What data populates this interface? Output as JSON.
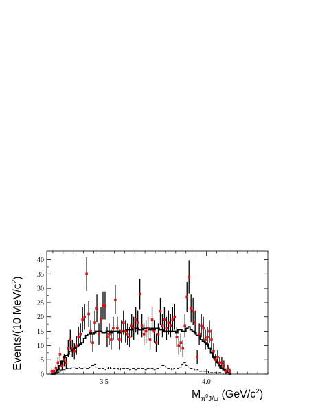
{
  "chart_data": {
    "type": "scatter",
    "xlim": [
      3.22,
      4.3
    ],
    "ylim": [
      0,
      43
    ],
    "xticks": [
      3.5,
      4.0
    ],
    "xtick_labels": [
      "3.5",
      "4.0"
    ],
    "yticks": [
      0,
      5,
      10,
      15,
      20,
      25,
      30,
      35,
      40
    ],
    "ytick_labels": [
      "0",
      "5",
      "10",
      "15",
      "20",
      "25",
      "30",
      "35",
      "40"
    ],
    "ylabel": {
      "main": "Events/(10 MeV/c",
      "sup": "2",
      "close": ")"
    },
    "xlabel": {
      "main": "M",
      "sub": "π",
      "subsup": "0",
      "subtail": "J/ψ",
      "unit": " (GeV/c",
      "unitsup": "2",
      "close": ")"
    },
    "grid": false,
    "legend": "none",
    "colors": {
      "points": "#dd1111",
      "errorbars": "#000000",
      "fit": "#000000",
      "background": "#000000"
    },
    "x": [
      3.245,
      3.255,
      3.265,
      3.275,
      3.285,
      3.295,
      3.305,
      3.315,
      3.325,
      3.335,
      3.345,
      3.355,
      3.365,
      3.375,
      3.385,
      3.395,
      3.405,
      3.415,
      3.425,
      3.435,
      3.445,
      3.455,
      3.465,
      3.475,
      3.485,
      3.495,
      3.505,
      3.515,
      3.525,
      3.535,
      3.545,
      3.555,
      3.565,
      3.575,
      3.585,
      3.595,
      3.605,
      3.615,
      3.625,
      3.635,
      3.645,
      3.655,
      3.665,
      3.675,
      3.685,
      3.695,
      3.705,
      3.715,
      3.725,
      3.735,
      3.745,
      3.755,
      3.765,
      3.775,
      3.785,
      3.795,
      3.805,
      3.815,
      3.825,
      3.835,
      3.845,
      3.855,
      3.865,
      3.875,
      3.885,
      3.895,
      3.905,
      3.915,
      3.925,
      3.935,
      3.945,
      3.955,
      3.965,
      3.975,
      3.985,
      3.995,
      4.005,
      4.015,
      4.025,
      4.035,
      4.045,
      4.055,
      4.065,
      4.075,
      4.085,
      4.095,
      4.105,
      4.115
    ],
    "y": [
      1,
      1,
      2,
      4,
      7,
      3,
      5,
      4,
      9,
      12,
      9,
      8,
      10,
      13,
      14,
      19,
      20,
      35,
      21,
      15,
      11,
      18,
      23,
      14,
      19,
      24,
      24,
      13,
      14,
      12,
      16,
      26,
      16,
      12,
      15,
      18,
      15,
      14,
      13,
      17,
      16,
      19,
      18,
      28,
      17,
      14,
      15,
      16,
      12,
      19,
      15,
      11,
      14,
      22,
      17,
      19,
      16,
      18,
      17,
      19,
      20,
      13,
      10,
      11,
      9,
      17,
      27,
      34,
      23,
      22,
      18,
      6,
      14,
      17,
      16,
      12,
      13,
      15,
      12,
      8,
      5,
      6,
      4,
      4,
      3,
      1,
      2,
      1
    ],
    "yerr_low": [
      1,
      1,
      1.4,
      2,
      2.6,
      1.7,
      2.2,
      2,
      3,
      3.5,
      3,
      2.8,
      3.2,
      3.6,
      3.7,
      4.4,
      4.5,
      5.9,
      4.6,
      3.9,
      3.3,
      4.2,
      4.8,
      3.7,
      4.4,
      4.9,
      4.9,
      3.6,
      3.7,
      3.5,
      4,
      5.1,
      4,
      3.5,
      3.9,
      4.2,
      3.9,
      3.7,
      3.6,
      4.1,
      4,
      4.4,
      4.2,
      5.3,
      4.1,
      3.7,
      3.9,
      4,
      3.5,
      4.4,
      3.9,
      3.3,
      3.7,
      4.7,
      4.1,
      4.4,
      4,
      4.2,
      4.1,
      4.4,
      4.5,
      3.6,
      3.2,
      3.3,
      3,
      4.1,
      5.2,
      5.8,
      4.8,
      4.7,
      4.2,
      2.4,
      3.7,
      4.1,
      4,
      3.5,
      3.6,
      3.9,
      3.5,
      2.8,
      2.2,
      2.4,
      2,
      2,
      1.7,
      1,
      1.4,
      1
    ],
    "fit_steps": [
      0,
      0,
      0.5,
      1.5,
      3,
      4.5,
      6,
      6.5,
      7,
      8,
      8.5,
      9,
      9.5,
      10,
      10.5,
      11,
      12.5,
      13.5,
      14,
      14.5,
      14,
      14.5,
      15,
      15,
      15,
      14.5,
      14.5,
      15,
      15,
      14.5,
      15,
      15,
      15,
      14.5,
      15,
      15,
      15,
      15.5,
      15.5,
      15.5,
      16,
      16,
      16,
      15.5,
      15.5,
      16,
      16,
      16,
      15.5,
      16,
      15.5,
      16,
      16,
      15.5,
      15.5,
      15,
      15,
      15,
      15,
      15,
      15,
      14.5,
      15.5,
      15.5,
      15,
      15,
      16,
      16.5,
      15.5,
      15,
      14.5,
      13.5,
      14,
      12,
      11.5,
      11,
      10.5,
      9,
      7.5,
      6,
      5,
      4,
      3,
      2,
      1.5,
      1,
      0.5,
      0
    ],
    "bkg_steps": [
      0,
      0,
      0,
      0.5,
      1,
      1.5,
      1.5,
      2,
      2,
      2,
      2.5,
      2.5,
      2,
      2.5,
      2,
      2,
      2.5,
      2,
      2,
      2.5,
      3,
      3.5,
      2.5,
      2,
      2,
      2,
      1.5,
      2,
      2.5,
      2,
      2,
      2,
      2,
      1.5,
      2,
      2,
      2,
      2,
      1.5,
      2,
      2,
      1.5,
      2,
      2,
      2,
      2,
      1.5,
      2,
      2,
      2,
      1.5,
      2,
      2,
      2.5,
      3,
      3,
      2.5,
      2,
      2,
      1.5,
      2,
      2,
      2,
      2.5,
      3.5,
      4,
      3,
      2.5,
      2,
      2,
      1.5,
      1.5,
      1,
      1,
      1,
      1,
      1,
      0.5,
      0.5,
      0.5,
      0.5,
      0.5,
      0.5,
      0.5,
      0,
      0,
      0,
      0
    ]
  }
}
